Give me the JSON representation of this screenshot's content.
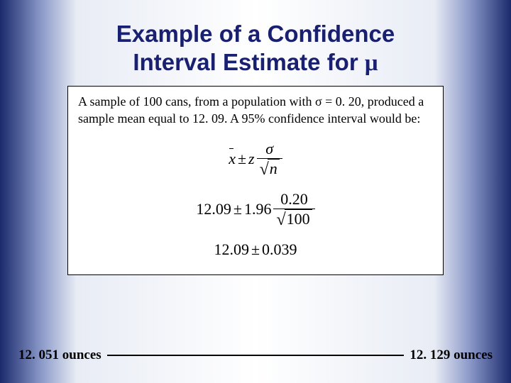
{
  "title_line1": "Example of a Confidence",
  "title_line2": "Interval Estimate for ",
  "title_mu": "μ",
  "description_pre": "A sample of 100 cans, from a population with ",
  "description_sigma": "σ",
  "description_post": " = 0. 20,  produced a sample mean equal to 12. 09.  A 95% confidence interval would be:",
  "formula1": {
    "xbar": "x",
    "pm": "±",
    "z": "z",
    "sigma": "σ",
    "n": "n"
  },
  "formula2": {
    "mean": "12.09",
    "pm": "±",
    "z": "1.96",
    "sd": "0.20",
    "n": "100"
  },
  "formula3": {
    "mean": "12.09",
    "pm": "±",
    "margin": "0.039"
  },
  "lower": "12. 051 ounces",
  "upper": "12. 129 ounces",
  "colors": {
    "title": "#1a2070",
    "text": "#000000",
    "box_bg": "#ffffff",
    "box_border": "#000000"
  }
}
